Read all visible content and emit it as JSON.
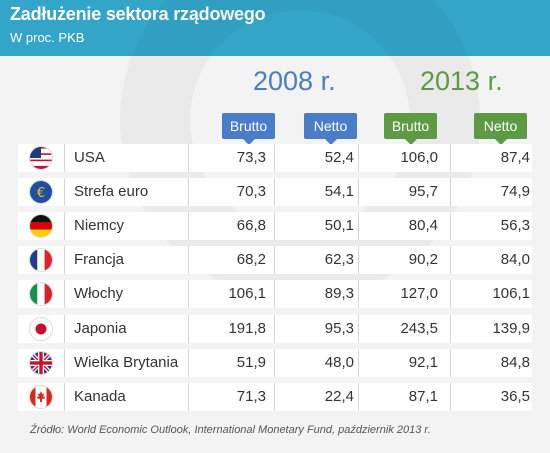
{
  "chart_data": {
    "type": "table",
    "title": "Zadłużenie sektora rządowego",
    "subtitle": "W proc. PKB",
    "groups": [
      "2008 r.",
      "2013 r."
    ],
    "columns": [
      "Brutto",
      "Netto",
      "Brutto",
      "Netto"
    ],
    "rows": [
      {
        "country": "USA",
        "flag": "flag-usa",
        "values": [
          "73,3",
          "52,4",
          "106,0",
          "87,4"
        ]
      },
      {
        "country": "Strefa euro",
        "flag": "flag-euro",
        "values": [
          "70,3",
          "54,1",
          "95,7",
          "74,9"
        ]
      },
      {
        "country": "Niemcy",
        "flag": "flag-germany",
        "values": [
          "66,8",
          "50,1",
          "80,4",
          "56,3"
        ]
      },
      {
        "country": "Francja",
        "flag": "flag-france",
        "values": [
          "68,2",
          "62,3",
          "90,2",
          "84,0"
        ]
      },
      {
        "country": "Włochy",
        "flag": "flag-italy",
        "values": [
          "106,1",
          "89,3",
          "127,0",
          "106,1"
        ]
      },
      {
        "country": "Japonia",
        "flag": "flag-japan",
        "values": [
          "191,8",
          "95,3",
          "243,5",
          "139,9"
        ]
      },
      {
        "country": "Wielka Brytania",
        "flag": "flag-uk",
        "values": [
          "51,9",
          "48,0",
          "92,1",
          "84,8"
        ]
      },
      {
        "country": "Kanada",
        "flag": "flag-canada",
        "values": [
          "71,3",
          "22,4",
          "87,1",
          "36,5"
        ]
      }
    ],
    "source": "Źródło: World Economic Outlook, International Monetary Fund, październik 2013 r.",
    "colors": {
      "header": "#33a5c9",
      "2008": "#4a7cc7",
      "2013": "#5e9a43"
    }
  }
}
